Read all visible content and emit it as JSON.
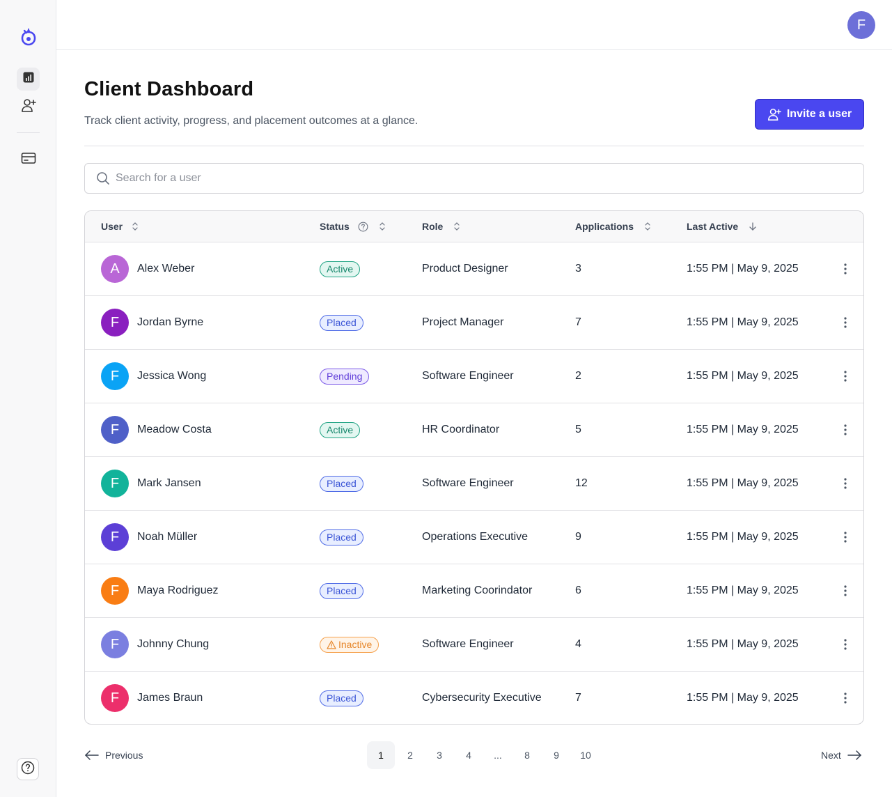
{
  "app": {
    "user_initial": "F"
  },
  "sidebar": {
    "items": [
      {
        "name": "dashboard",
        "icon": "bar-chart-icon"
      },
      {
        "name": "invite",
        "icon": "user-plus-icon"
      },
      {
        "name": "billing",
        "icon": "credit-card-icon"
      }
    ],
    "help_icon": "help-circle-icon"
  },
  "header": {
    "title": "Client Dashboard",
    "subtitle": "Track client activity, progress, and placement outcomes at a glance.",
    "invite_label": "Invite a user"
  },
  "search": {
    "placeholder": "Search for a user"
  },
  "table": {
    "columns": {
      "user": "User",
      "status": "Status",
      "role": "Role",
      "applications": "Applications",
      "last_active": "Last Active"
    },
    "rows": [
      {
        "initial": "A",
        "avatar_color": "#b966d6",
        "name": "Alex Weber",
        "status": "Active",
        "status_type": "active",
        "role": "Product Designer",
        "applications": "3",
        "last_active": "1:55 PM | May 9, 2025"
      },
      {
        "initial": "F",
        "avatar_color": "#8a1fbf",
        "name": "Jordan Byrne",
        "status": "Placed",
        "status_type": "placed",
        "role": "Project Manager",
        "applications": "7",
        "last_active": "1:55 PM | May 9, 2025"
      },
      {
        "initial": "F",
        "avatar_color": "#0aa3f5",
        "name": "Jessica Wong",
        "status": "Pending",
        "status_type": "pending",
        "role": "Software Engineer",
        "applications": "2",
        "last_active": "1:55 PM | May 9, 2025"
      },
      {
        "initial": "F",
        "avatar_color": "#4f60c8",
        "name": "Meadow Costa",
        "status": "Active",
        "status_type": "active",
        "role": "HR Coordinator",
        "applications": "5",
        "last_active": "1:55 PM | May 9, 2025"
      },
      {
        "initial": "F",
        "avatar_color": "#12b39a",
        "name": "Mark Jansen",
        "status": "Placed",
        "status_type": "placed",
        "role": "Software Engineer",
        "applications": "12",
        "last_active": "1:55 PM | May 9, 2025"
      },
      {
        "initial": "F",
        "avatar_color": "#5c3fd6",
        "name": "Noah Müller",
        "status": "Placed",
        "status_type": "placed",
        "role": "Operations Executive",
        "applications": "9",
        "last_active": "1:55 PM | May 9, 2025"
      },
      {
        "initial": "F",
        "avatar_color": "#f97d14",
        "name": "Maya Rodriguez",
        "status": "Placed",
        "status_type": "placed",
        "role": "Marketing Coorindator",
        "applications": "6",
        "last_active": "1:55 PM | May 9, 2025"
      },
      {
        "initial": "F",
        "avatar_color": "#7b7fe0",
        "name": "Johnny Chung",
        "status": "Inactive",
        "status_type": "inactive",
        "role": "Software Engineer",
        "applications": "4",
        "last_active": "1:55 PM | May 9, 2025"
      },
      {
        "initial": "F",
        "avatar_color": "#ec2f6b",
        "name": "James Braun",
        "status": "Placed",
        "status_type": "placed",
        "role": "Cybersecurity Executive",
        "applications": "7",
        "last_active": "1:55 PM | May 9, 2025"
      }
    ]
  },
  "pagination": {
    "previous": "Previous",
    "next": "Next",
    "pages": [
      "1",
      "2",
      "3",
      "4",
      "...",
      "8",
      "9",
      "10"
    ],
    "current": "1"
  }
}
